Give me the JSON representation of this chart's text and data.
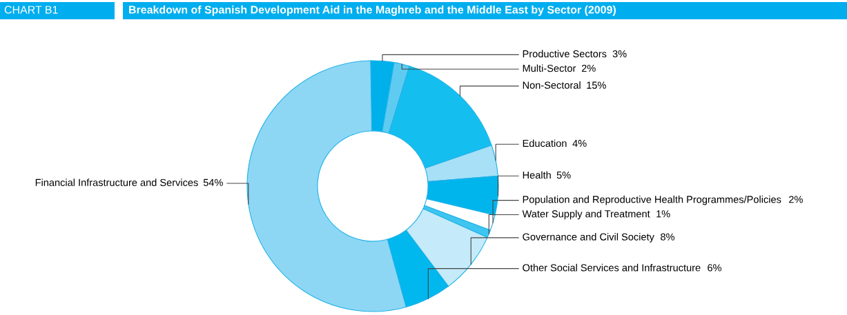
{
  "chart_data": {
    "type": "donut",
    "title": "Breakdown of Spanish Development Aid in the Maghreb and the Middle East by Sector (2009)",
    "annotations": [
      "CHART B1"
    ],
    "categories": [
      "Productive Sectors",
      "Multi-Sector",
      "Non-Sectoral",
      "Education",
      "Health",
      "Population and Reproductive Health Programmes/Policies",
      "Water Supply and Treatment",
      "Governance and Civil Society",
      "Other Social Services and Infrastructure",
      "Financial Infrastructure and Services"
    ],
    "values": [
      3,
      2,
      15,
      4,
      5,
      2,
      1,
      8,
      6,
      54
    ],
    "colors": [
      "#00b0eb",
      "#5fcbf0",
      "#14bff0",
      "#a8e0f7",
      "#00b5ec",
      "#ffffff",
      "#3ec5f0",
      "#c5eaf9",
      "#00b7ee",
      "#8dd7f5"
    ],
    "value_labels": [
      "3%",
      "2%",
      "15%",
      "4%",
      "5%",
      "2%",
      "1%",
      "8%",
      "6%",
      "54%"
    ]
  }
}
